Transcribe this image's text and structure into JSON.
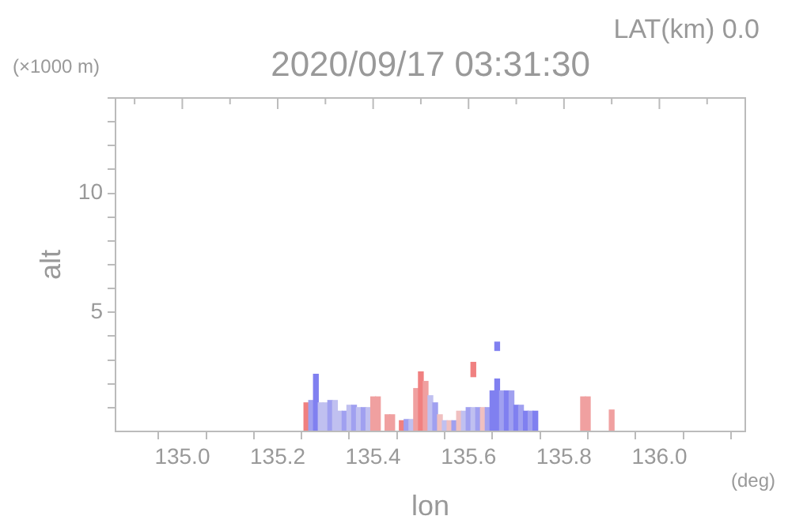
{
  "chart_data": {
    "type": "bar",
    "title": "2020/09/17 03:31:30",
    "subtitle": "LAT(km) 0.0",
    "xlabel": "lon",
    "ylabel": "alt",
    "annotations": [
      "(×1000 m)",
      "(deg)"
    ],
    "xlim": [
      134.86,
      136.18
    ],
    "xticks": [
      {
        "value": 134.9,
        "label": null
      },
      {
        "value": 135,
        "label": "135.0"
      },
      {
        "value": 135.1,
        "label": null
      },
      135.2,
      {
        "value": 135.3,
        "label": null
      },
      135.4,
      {
        "value": 135.5,
        "label": null
      },
      135.6,
      {
        "value": 135.7,
        "label": null
      },
      135.8,
      {
        "value": 135.9,
        "label": null
      },
      {
        "value": 136,
        "label": "136.0"
      },
      {
        "value": 136.1,
        "label": null
      }
    ],
    "ylim": [
      0,
      14
    ],
    "yticks": [
      {
        "value": 1,
        "label": null
      },
      {
        "value": 2,
        "label": null
      },
      {
        "value": 3,
        "label": null
      },
      {
        "value": 4,
        "label": null
      },
      5,
      {
        "value": 6,
        "label": null
      },
      {
        "value": 7,
        "label": null
      },
      {
        "value": 8,
        "label": null
      },
      {
        "value": 9,
        "label": null
      },
      10,
      {
        "value": 11,
        "label": null
      },
      {
        "value": 12,
        "label": null
      },
      {
        "value": 13,
        "label": null
      },
      {
        "value": 14,
        "label": null
      }
    ],
    "series": [
      {
        "x": [
          135.26,
          135.27,
          135.28,
          135.29,
          135.3,
          135.31,
          135.32,
          135.33,
          135.34,
          135.35,
          135.36,
          135.37,
          135.38,
          135.39,
          135.4,
          135.41,
          135.43,
          135.44,
          135.46,
          135.47,
          135.48,
          135.49,
          135.5,
          135.51,
          135.52,
          135.53,
          135.54,
          135.55,
          135.56,
          135.57,
          135.58,
          135.59,
          135.6,
          135.61,
          135.62,
          135.63,
          135.64,
          135.65,
          135.66,
          135.67,
          135.68,
          135.69,
          135.7,
          135.71,
          135.72,
          135.73,
          135.74,
          135.84,
          135.85,
          135.9
        ],
        "values": [
          1.2,
          1.3,
          2.4,
          1.2,
          1.2,
          1.3,
          1.3,
          0.85,
          0.85,
          1.1,
          1.1,
          1.0,
          1.0,
          1.0,
          1.45,
          1.45,
          0.7,
          0.7,
          0.45,
          0.5,
          0.5,
          1.8,
          2.5,
          2.1,
          1.5,
          1.2,
          0.7,
          0.45,
          0.45,
          0.45,
          0.85,
          0.85,
          1.0,
          1.0,
          1.0,
          1.0,
          1.0,
          1.7,
          2.2,
          1.7,
          1.7,
          1.7,
          1.1,
          1.1,
          0.85,
          0.85,
          0.85,
          1.45,
          1.45,
          0.9
        ],
        "colors": [
          "#f08080",
          "#a0a0f0",
          "#8080f0",
          "#c0c0f0",
          "#c0c0f0",
          "#a0a0f0",
          "#c0c0f0",
          "#c0c0f0",
          "#a0a0f0",
          "#c0c0f0",
          "#a0a0f0",
          "#c0c0f0",
          "#a0a0f0",
          "#c0c0f0",
          "#f0a0a0",
          "#f0a0a0",
          "#f0a0a0",
          "#f0a0a0",
          "#f08080",
          "#a0a0f0",
          "#c0c0f0",
          "#f0a0a0",
          "#f08080",
          "#f0a0a0",
          "#c0c0f0",
          "#a0a0f0",
          "#f0c0c0",
          "#c0c0f0",
          "#f0c0c0",
          "#a0a0f0",
          "#f0c0c0",
          "#c0c0f0",
          "#a0a0f0",
          "#c0c0f0",
          "#a0a0f0",
          "#f0c0c0",
          "#a0a0f0",
          "#8080f0",
          "#8080f0",
          "#a0a0f0",
          "#8080f0",
          "#a0a0f0",
          "#8080f0",
          "#a0a0f0",
          "#8080f0",
          "#a0a0f0",
          "#8080f0",
          "#f0a0a0",
          "#f0a0a0",
          "#f0a0a0"
        ]
      },
      {
        "x": [
          135.61
        ],
        "values": [
          0.6
        ],
        "base": [
          2.3
        ],
        "color": "#f08080"
      },
      {
        "x": [
          135.66
        ],
        "values": [
          0.35
        ],
        "base": [
          3.4
        ],
        "color": "#8080f0"
      }
    ]
  }
}
